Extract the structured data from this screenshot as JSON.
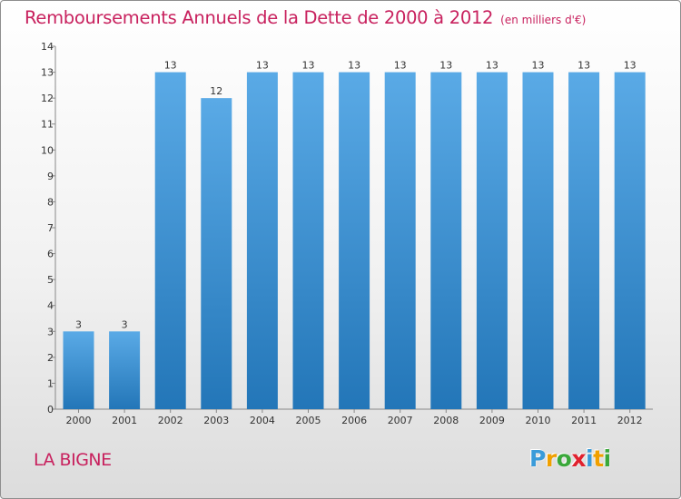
{
  "header": {
    "title": "Remboursements Annuels de la Dette de 2000 à 2012",
    "unit": "(en milliers d'€)"
  },
  "footer": {
    "commune": "LA BIGNE",
    "logo_letters": [
      "P",
      "r",
      "o",
      "x",
      "i",
      "t",
      "i"
    ],
    "logo_colors": [
      "#3a9bd9",
      "#f0a000",
      "#3aa83a",
      "#e0212e",
      "#3a9bd9",
      "#f0a000",
      "#3aa83a"
    ]
  },
  "colors": {
    "bar_top": "#5aaae6",
    "bar_bottom": "#2376b8",
    "title": "#c8215e"
  },
  "chart_data": {
    "type": "bar",
    "title": "Remboursements Annuels de la Dette de 2000 à 2012",
    "subtitle": "(en milliers d'€)",
    "categories": [
      "2000",
      "2001",
      "2002",
      "2003",
      "2004",
      "2005",
      "2006",
      "2007",
      "2008",
      "2009",
      "2010",
      "2011",
      "2012"
    ],
    "values": [
      3,
      3,
      13,
      12,
      13,
      13,
      13,
      13,
      13,
      13,
      13,
      13,
      13
    ],
    "data_labels": [
      "3",
      "3",
      "13",
      "12",
      "13",
      "13",
      "13",
      "13",
      "13",
      "13",
      "13",
      "13",
      "13"
    ],
    "y_ticks": [
      "0",
      "1",
      "2",
      "3",
      "4",
      "5",
      "6",
      "7",
      "8",
      "9",
      "10",
      "11",
      "12",
      "13",
      "14"
    ],
    "ylim": [
      0,
      14
    ],
    "xlabel": "",
    "ylabel": "",
    "grid": false,
    "legend": "none"
  }
}
